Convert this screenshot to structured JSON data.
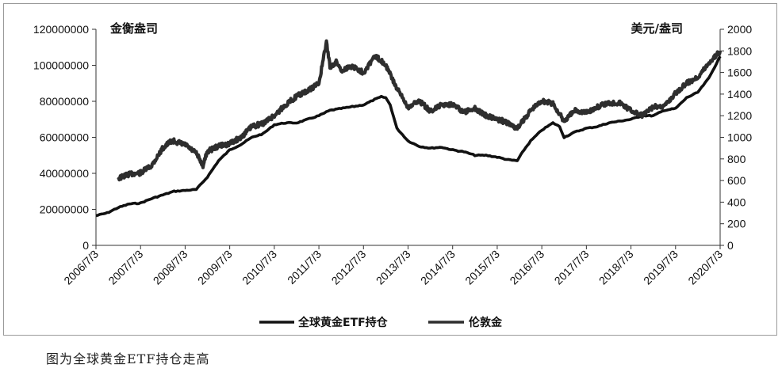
{
  "caption": "图为全球黄金ETF持仓走高",
  "chart_data": {
    "type": "line",
    "left_axis_unit": "金衡盎司",
    "right_axis_unit": "美元/盎司",
    "left_ylim": [
      0,
      120000000
    ],
    "left_ticks": [
      "120000000",
      "100000000",
      "80000000",
      "60000000",
      "40000000",
      "20000000",
      "0"
    ],
    "right_ylim": [
      0,
      2000
    ],
    "right_ticks": [
      "2000",
      "1800",
      "1600",
      "1400",
      "1200",
      "1000",
      "800",
      "600",
      "400",
      "200",
      "0"
    ],
    "x_ticks": [
      "2006/7/3",
      "2007/7/3",
      "2008/7/3",
      "2009/7/3",
      "2010/7/3",
      "2011/7/3",
      "2012/7/3",
      "2013/7/3",
      "2014/7/3",
      "2015/7/3",
      "2016/7/3",
      "2017/7/3",
      "2018/7/3",
      "2019/7/3",
      "2020/7/3"
    ],
    "legend": "bottom-center",
    "series": [
      {
        "name": "全球黄金ETF持仓",
        "axis": "left",
        "x": [
          2006.5,
          2006.75,
          2007.0,
          2007.25,
          2007.5,
          2007.75,
          2008.0,
          2008.25,
          2008.5,
          2008.75,
          2009.0,
          2009.25,
          2009.5,
          2009.75,
          2010.0,
          2010.25,
          2010.5,
          2010.75,
          2011.0,
          2011.25,
          2011.5,
          2011.75,
          2012.0,
          2012.25,
          2012.5,
          2012.75,
          2012.9,
          2013.0,
          2013.1,
          2013.25,
          2013.5,
          2013.75,
          2014.0,
          2014.25,
          2014.5,
          2014.75,
          2015.0,
          2015.25,
          2015.5,
          2015.75,
          2015.95,
          2016.1,
          2016.25,
          2016.5,
          2016.75,
          2016.9,
          2017.0,
          2017.25,
          2017.5,
          2017.75,
          2018.0,
          2018.25,
          2018.5,
          2018.75,
          2019.0,
          2019.25,
          2019.5,
          2019.75,
          2020.0,
          2020.25,
          2020.5
        ],
        "values": [
          16500000,
          18000000,
          21000000,
          23000000,
          23500000,
          26000000,
          28000000,
          30000000,
          30500000,
          31000000,
          38000000,
          47000000,
          53000000,
          56000000,
          60000000,
          62000000,
          67000000,
          68000000,
          68000000,
          70000000,
          72000000,
          75000000,
          76000000,
          77000000,
          78000000,
          81000000,
          82500000,
          82000000,
          78000000,
          65000000,
          58000000,
          55000000,
          54000000,
          54500000,
          53000000,
          52000000,
          50000000,
          50000000,
          49000000,
          47500000,
          47000000,
          53000000,
          58000000,
          64000000,
          68000000,
          66000000,
          60000000,
          63000000,
          65000000,
          66000000,
          68000000,
          69000000,
          70000000,
          72000000,
          72000000,
          75000000,
          76000000,
          82000000,
          85000000,
          93000000,
          105000000
        ]
      },
      {
        "name": "伦敦金",
        "axis": "right",
        "x": [
          2007.0,
          2007.25,
          2007.5,
          2007.75,
          2008.0,
          2008.2,
          2008.5,
          2008.75,
          2008.9,
          2009.0,
          2009.25,
          2009.5,
          2009.75,
          2010.0,
          2010.25,
          2010.5,
          2010.75,
          2011.0,
          2011.25,
          2011.5,
          2011.67,
          2011.75,
          2011.9,
          2012.0,
          2012.25,
          2012.5,
          2012.75,
          2012.9,
          2013.0,
          2013.25,
          2013.5,
          2013.75,
          2014.0,
          2014.25,
          2014.5,
          2014.75,
          2015.0,
          2015.25,
          2015.5,
          2015.75,
          2015.95,
          2016.25,
          2016.5,
          2016.75,
          2017.0,
          2017.25,
          2017.5,
          2017.75,
          2018.0,
          2018.25,
          2018.5,
          2018.75,
          2019.0,
          2019.25,
          2019.5,
          2019.75,
          2020.0,
          2020.25,
          2020.5
        ],
        "values": [
          620,
          660,
          670,
          740,
          900,
          970,
          930,
          850,
          740,
          870,
          920,
          940,
          1000,
          1100,
          1130,
          1200,
          1300,
          1380,
          1430,
          1500,
          1880,
          1650,
          1700,
          1620,
          1660,
          1600,
          1750,
          1710,
          1670,
          1450,
          1280,
          1340,
          1240,
          1300,
          1310,
          1230,
          1270,
          1200,
          1170,
          1130,
          1080,
          1250,
          1340,
          1310,
          1150,
          1250,
          1230,
          1280,
          1320,
          1320,
          1250,
          1200,
          1280,
          1290,
          1410,
          1500,
          1560,
          1690,
          1800
        ]
      }
    ]
  }
}
